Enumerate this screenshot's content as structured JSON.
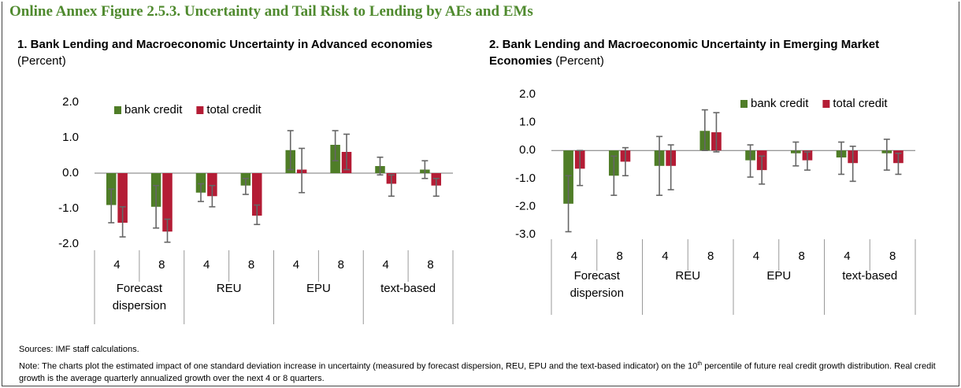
{
  "title": "Online Annex Figure 2.5.3. Uncertainty and Tail Risk to Lending by AEs and EMs",
  "chart_data": [
    {
      "type": "bar",
      "title": "1.   Bank Lending and Macroeconomic Uncertainty in Advanced economies",
      "unit": "(Percent)",
      "categories": [
        "4",
        "8",
        "4",
        "8",
        "4",
        "8",
        "4",
        "8"
      ],
      "groups": [
        "Forecast dispersion",
        "REU",
        "EPU",
        "text-based"
      ],
      "series": [
        {
          "name": "bank credit",
          "color": "#4f7d27",
          "values": [
            -0.9,
            -0.95,
            -0.55,
            -0.35,
            0.65,
            0.8,
            0.2,
            0.1
          ],
          "error_low": [
            -1.4,
            -1.55,
            -0.8,
            -0.6,
            0.1,
            0.35,
            -0.05,
            -0.15
          ],
          "error_high": [
            -0.45,
            -0.35,
            -0.3,
            -0.15,
            1.2,
            1.2,
            0.45,
            0.35
          ]
        },
        {
          "name": "total credit",
          "color": "#b41c35",
          "values": [
            -1.4,
            -1.65,
            -0.65,
            -1.2,
            0.1,
            0.6,
            -0.3,
            -0.35
          ],
          "error_low": [
            -1.8,
            -1.95,
            -0.95,
            -1.45,
            -0.55,
            0.1,
            -0.65,
            -0.65
          ],
          "error_high": [
            -0.95,
            -1.3,
            -0.35,
            -0.9,
            0.7,
            1.1,
            -0.05,
            -0.15
          ]
        }
      ],
      "ylim": [
        -2,
        2
      ],
      "yticks": [
        {
          "value": 2,
          "label": "2.0"
        },
        {
          "value": 1,
          "label": "1.0"
        },
        {
          "value": 0,
          "label": "0.0"
        },
        {
          "value": -1,
          "label": "-1.0"
        },
        {
          "value": -2,
          "label": "-2.0"
        }
      ]
    },
    {
      "type": "bar",
      "title": "2.   Bank Lending and Macroeconomic Uncertainty in Emerging Market Economies",
      "unit": "(Percent)",
      "categories": [
        "4",
        "8",
        "4",
        "8",
        "4",
        "8",
        "4",
        "8"
      ],
      "groups": [
        "Forecast dispersion",
        "REU",
        "EPU",
        "text-based"
      ],
      "series": [
        {
          "name": "bank credit",
          "color": "#4f7d27",
          "values": [
            -1.9,
            -0.9,
            -0.55,
            0.7,
            -0.35,
            -0.1,
            -0.25,
            -0.1
          ],
          "error_low": [
            -2.9,
            -1.6,
            -1.6,
            0,
            -0.95,
            -0.55,
            -0.85,
            -0.7
          ],
          "error_high": [
            -0.9,
            -0.2,
            0.5,
            1.45,
            0.2,
            0.3,
            0.3,
            0.4
          ]
        },
        {
          "name": "total credit",
          "color": "#b41c35",
          "values": [
            -0.65,
            -0.4,
            -0.55,
            0.65,
            -0.7,
            -0.35,
            -0.45,
            -0.45
          ],
          "error_low": [
            -1.25,
            -0.9,
            -1.4,
            -0.05,
            -1.2,
            -0.7,
            -1.1,
            -0.85
          ],
          "error_high": [
            0,
            0.1,
            0.2,
            1.35,
            -0.2,
            -0.05,
            0.15,
            -0.1
          ]
        }
      ],
      "ylim": [
        -3,
        2
      ],
      "yticks": [
        {
          "value": 2,
          "label": "2.0"
        },
        {
          "value": 1,
          "label": "1.0"
        },
        {
          "value": 0,
          "label": "0.0"
        },
        {
          "value": -1,
          "label": "-1.0"
        },
        {
          "value": -2,
          "label": "-2.0"
        },
        {
          "value": -3,
          "label": "-3.0"
        }
      ]
    }
  ],
  "sources": "Sources: IMF staff calculations.",
  "note": [
    "Note: The charts plot the estimated impact of one standard deviation increase in uncertainty (measured by forecast dispersion, REU, EPU and the text-based indicator) on the 10",
    "th",
    " percentile of future real credit growth distribution. Real credit growth is the average quarterly annualized growth over the next 4 or 8 quarters."
  ]
}
